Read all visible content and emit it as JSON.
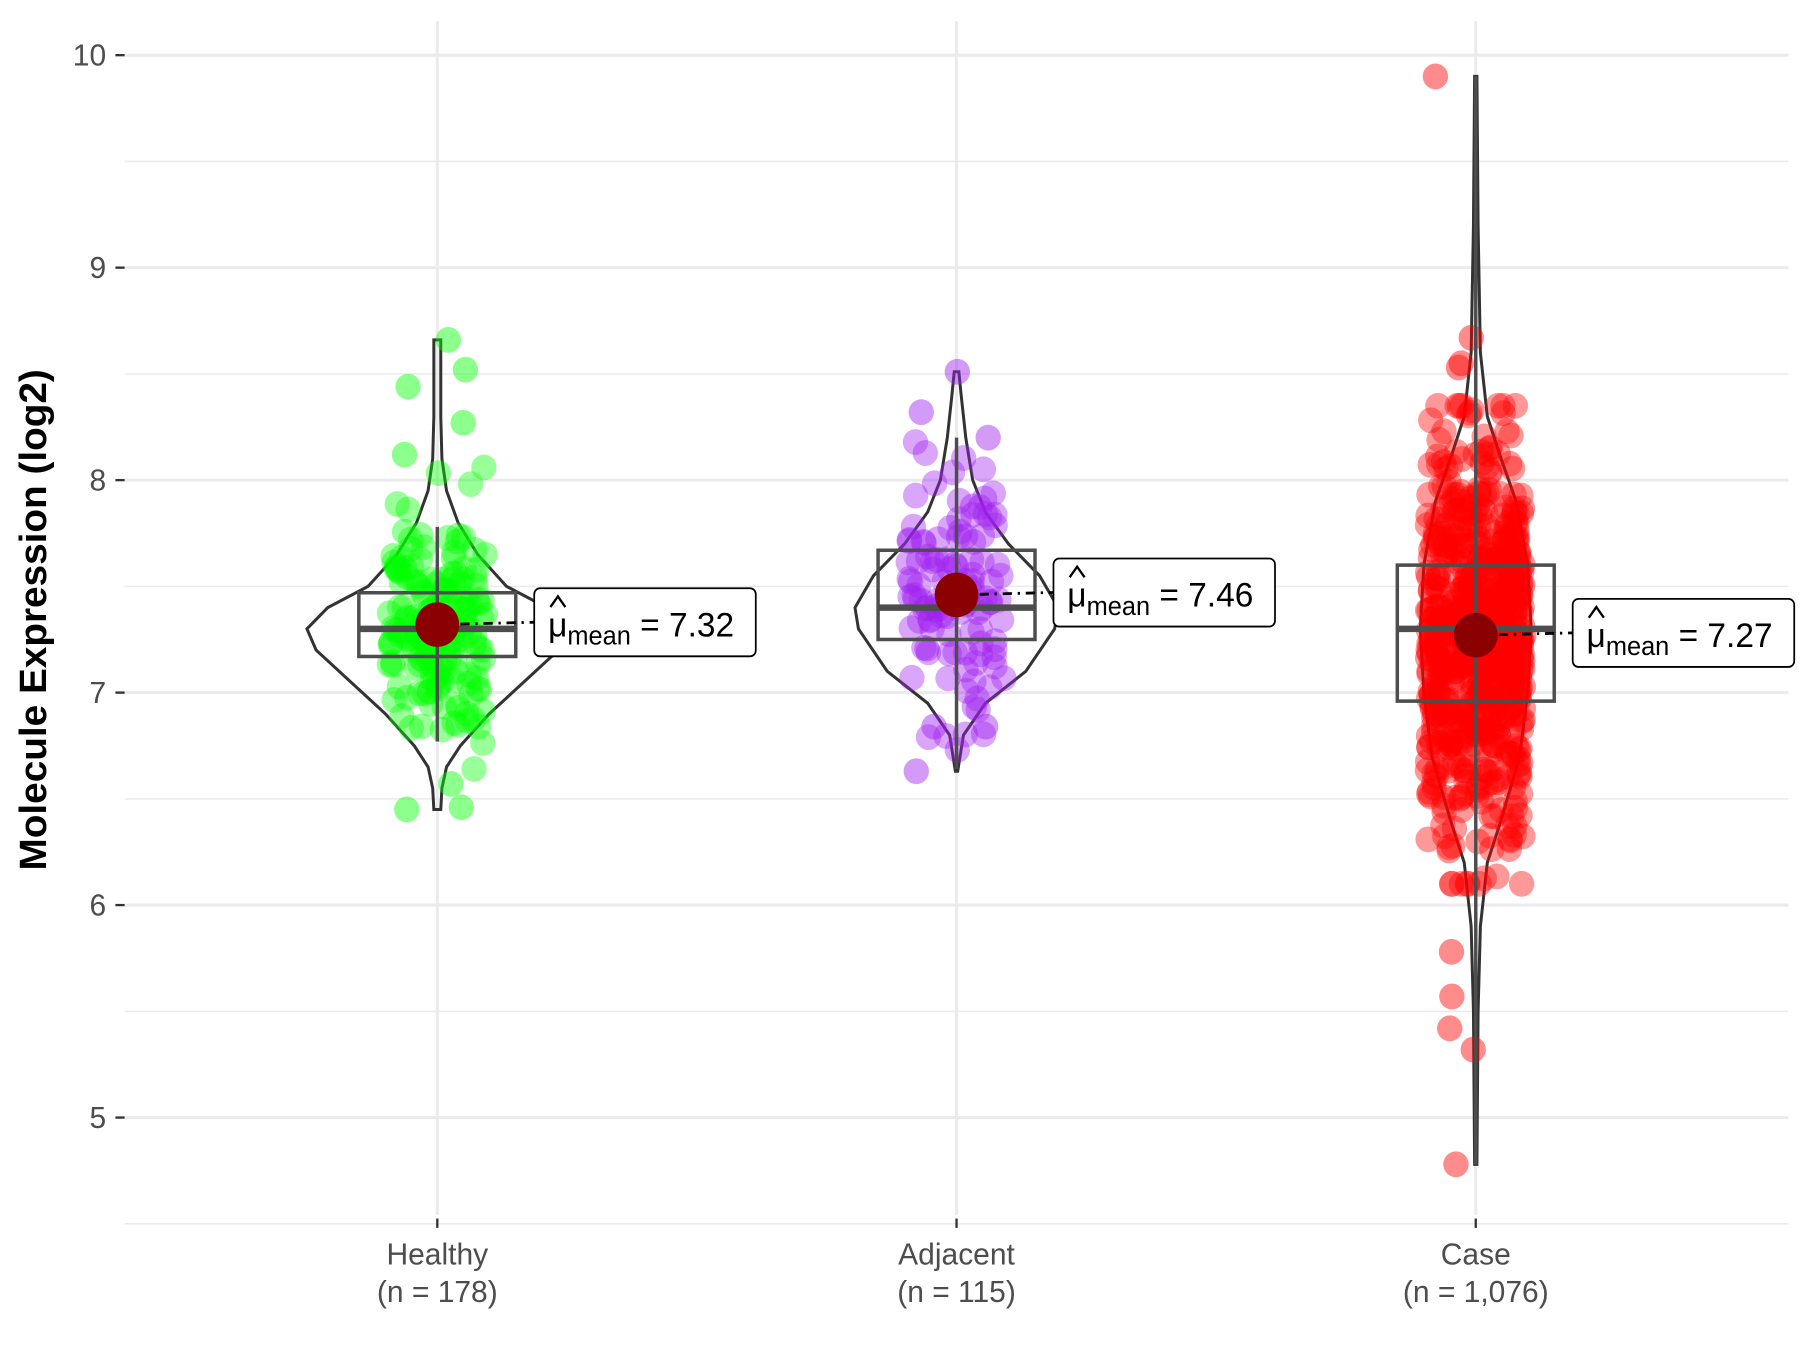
{
  "chart_data": {
    "type": "violin-box-jitter",
    "ylabel": "Molecule Expression (log2)",
    "xlabel": "",
    "ylim": [
      4.5,
      10.15
    ],
    "y_ticks": [
      "5",
      "6",
      "7",
      "8",
      "9",
      "10"
    ],
    "grid": true,
    "legend": "none",
    "mean_color": "#8B0000",
    "mean_label_prefix": "μ",
    "mean_label_sub": "mean",
    "mean_label_eq": "=",
    "groups": [
      {
        "name": "Healthy",
        "n_label": "(n = 178)",
        "n": 178,
        "color": "#00FF00",
        "mean": 7.32,
        "mean_text": "7.32",
        "box": {
          "q1": 7.17,
          "median": 7.3,
          "q3": 7.47,
          "whisker_low": 6.77,
          "whisker_high": 7.78
        },
        "range": [
          6.45,
          8.66
        ],
        "extreme_points": [
          8.66,
          8.52,
          8.44,
          8.27,
          8.12,
          6.57,
          6.46,
          6.45
        ]
      },
      {
        "name": "Adjacent",
        "n_label": "(n = 115)",
        "n": 115,
        "color": "#A020F0",
        "mean": 7.46,
        "mean_text": "7.46",
        "box": {
          "q1": 7.25,
          "median": 7.4,
          "q3": 7.67,
          "whisker_low": 6.64,
          "whisker_high": 8.2
        },
        "range": [
          6.63,
          8.51
        ],
        "extreme_points": [
          8.51,
          8.32,
          8.2,
          6.84,
          6.84,
          6.63
        ]
      },
      {
        "name": "Case",
        "n_label": "(n = 1,076)",
        "n": 1076,
        "color": "#FF0000",
        "mean": 7.27,
        "mean_text": "7.27",
        "box": {
          "q1": 6.96,
          "median": 7.3,
          "q3": 7.6,
          "whisker_low": 4.78,
          "whisker_high": 9.9
        },
        "range": [
          4.78,
          9.9
        ],
        "extreme_points": [
          9.9,
          8.67,
          8.55,
          8.53,
          5.78,
          5.57,
          5.42,
          5.32,
          4.78
        ]
      }
    ]
  }
}
